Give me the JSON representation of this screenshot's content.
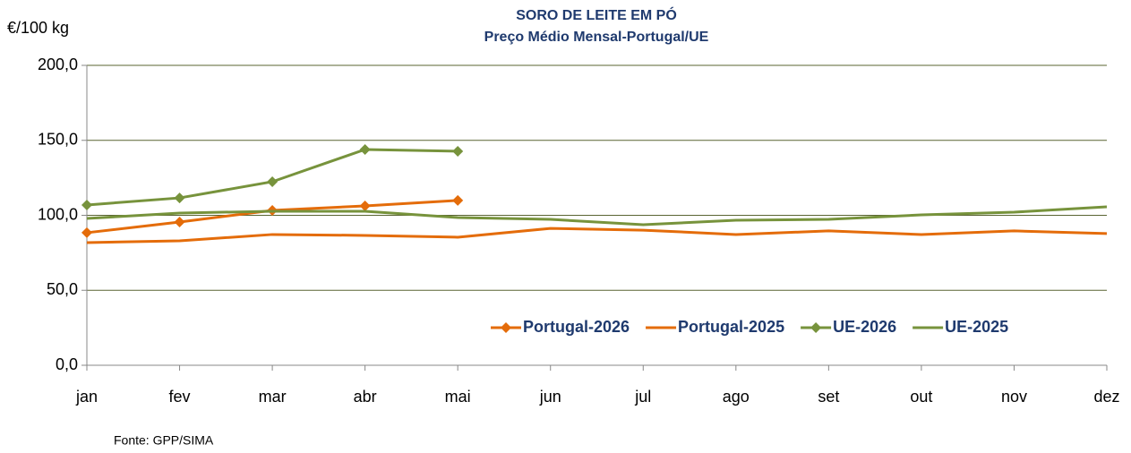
{
  "chart_data": {
    "type": "line",
    "title": "SORO DE LEITE EM PÓ",
    "subtitle": "Preço Médio Mensal-Portugal/UE",
    "y_label": "€/100 kg",
    "source": "Fonte: GPP/SIMA",
    "categories": [
      "jan",
      "fev",
      "mar",
      "abr",
      "mai",
      "jun",
      "jul",
      "ago",
      "set",
      "out",
      "nov",
      "dez"
    ],
    "series": [
      {
        "name": "Portugal-2026",
        "color": "#e46c0a",
        "marker": "diamond",
        "values": [
          88.4,
          95.5,
          103.3,
          106.3,
          109.9,
          null,
          null,
          null,
          null,
          null,
          null,
          null
        ]
      },
      {
        "name": "Portugal-2025",
        "color": "#e46c0a",
        "marker": "none",
        "values": [
          81.8,
          83.0,
          87.2,
          86.6,
          85.4,
          91.3,
          90.1,
          87.2,
          89.6,
          87.2,
          89.6,
          87.8
        ]
      },
      {
        "name": "UE-2026",
        "color": "#77933c",
        "marker": "diamond",
        "values": [
          106.9,
          111.6,
          122.4,
          143.9,
          142.7,
          null,
          null,
          null,
          null,
          null,
          null,
          null
        ]
      },
      {
        "name": "UE-2025",
        "color": "#77933c",
        "marker": "none",
        "values": [
          97.9,
          101.5,
          102.7,
          102.7,
          98.5,
          97.3,
          93.7,
          96.7,
          97.3,
          100.3,
          102.1,
          105.7
        ]
      }
    ],
    "ylim": [
      0,
      200
    ],
    "yticks": [
      {
        "value": 0,
        "label": "0,0"
      },
      {
        "value": 50,
        "label": "50,0"
      },
      {
        "value": 100,
        "label": "100,0"
      },
      {
        "value": 150,
        "label": "150,0"
      },
      {
        "value": 200,
        "label": "200,0"
      }
    ],
    "grid": true,
    "legend": "bottom-right"
  }
}
